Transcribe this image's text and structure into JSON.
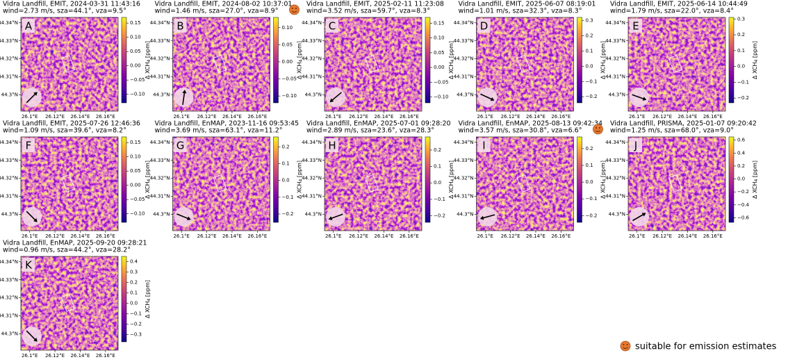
{
  "chart_data": [
    {
      "type": "heatmap",
      "title": "Vidra Landfill, EMIT, 2024-03-31 11:43:16",
      "subtitle": "wind=2.73 m/s, sza=44.1°, vza=9.5°",
      "label": "A",
      "suitable": false,
      "wind_arrow_deg": 45,
      "xlim": [
        26.093,
        26.17
      ],
      "ylim": [
        44.291,
        44.343
      ],
      "xticks": [
        {
          "value": 26.1,
          "label": "26.1°E"
        },
        {
          "value": 26.12,
          "label": "26.12°E"
        },
        {
          "value": 26.14,
          "label": "26.14°E"
        },
        {
          "value": 26.16,
          "label": "26.16°E"
        }
      ],
      "yticks": [
        {
          "value": 44.34,
          "label": "44.34°N"
        },
        {
          "value": 44.33,
          "label": "44.33°N"
        },
        {
          "value": 44.32,
          "label": "44.32°N"
        },
        {
          "value": 44.31,
          "label": "44.31°N"
        },
        {
          "value": 44.3,
          "label": "44.3°N"
        }
      ],
      "clim": [
        -0.13,
        0.17
      ],
      "cticks": [
        {
          "value": 0.15,
          "label": "0.15"
        },
        {
          "value": 0.1,
          "label": "0.10"
        },
        {
          "value": 0.05,
          "label": "0.05"
        },
        {
          "value": 0,
          "label": "0.00"
        },
        {
          "value": -0.05,
          "label": "−0.05"
        },
        {
          "value": -0.1,
          "label": "−0.10"
        }
      ],
      "clabel": [
        "Δ XCH",
        "4",
        " [ppm]"
      ]
    },
    {
      "type": "heatmap",
      "title": "Vidra Landfill, EMIT, 2024-08-02 10:37:01",
      "subtitle": "wind=1.46 m/s, sza=27.0°, vza=8.9°",
      "label": "B",
      "suitable": true,
      "wind_arrow_deg": 8,
      "xlim": [
        26.093,
        26.17
      ],
      "ylim": [
        44.291,
        44.343
      ],
      "xticks": [
        {
          "value": 26.1,
          "label": "26.1°E"
        },
        {
          "value": 26.12,
          "label": "26.12°E"
        },
        {
          "value": 26.14,
          "label": "26.14°E"
        },
        {
          "value": 26.16,
          "label": "26.16°E"
        }
      ],
      "yticks": [
        {
          "value": 44.34,
          "label": "44.34°N"
        },
        {
          "value": 44.33,
          "label": "44.33°N"
        },
        {
          "value": 44.32,
          "label": "44.32°N"
        },
        {
          "value": 44.31,
          "label": "44.31°N"
        },
        {
          "value": 44.3,
          "label": "44.3°N"
        }
      ],
      "clim": [
        -0.12,
        0.13
      ],
      "cticks": [
        {
          "value": 0.1,
          "label": "0.10"
        },
        {
          "value": 0.05,
          "label": "0.05"
        },
        {
          "value": 0,
          "label": "0.00"
        },
        {
          "value": -0.05,
          "label": "−0.05"
        },
        {
          "value": -0.1,
          "label": "−0.10"
        }
      ],
      "clabel": [
        "Δ XCH",
        "4",
        " [ppm]"
      ]
    },
    {
      "type": "heatmap",
      "title": "Vidra Landfill, EMIT, 2025-02-11 11:23:08",
      "subtitle": "wind=3.52 m/s, sza=59.7°, vza=8.3°",
      "label": "C",
      "suitable": false,
      "wind_arrow_deg": 230,
      "xlim": [
        26.093,
        26.17
      ],
      "ylim": [
        44.291,
        44.343
      ],
      "xticks": [
        {
          "value": 26.1,
          "label": "26.1°E"
        },
        {
          "value": 26.12,
          "label": "26.12°E"
        },
        {
          "value": 26.14,
          "label": "26.14°E"
        },
        {
          "value": 26.16,
          "label": "26.16°E"
        }
      ],
      "yticks": [
        {
          "value": 44.34,
          "label": "44.34°N"
        },
        {
          "value": 44.33,
          "label": "44.33°N"
        },
        {
          "value": 44.32,
          "label": "44.32°N"
        },
        {
          "value": 44.31,
          "label": "44.31°N"
        },
        {
          "value": 44.3,
          "label": "44.3°N"
        }
      ],
      "clim": [
        -0.12,
        0.17
      ],
      "cticks": [
        {
          "value": 0.15,
          "label": "0.15"
        },
        {
          "value": 0.1,
          "label": "0.10"
        },
        {
          "value": 0.05,
          "label": "0.05"
        },
        {
          "value": 0,
          "label": "0.00"
        },
        {
          "value": -0.05,
          "label": "−0.05"
        },
        {
          "value": -0.1,
          "label": "−0.10"
        }
      ],
      "clabel": [
        "Δ XCH",
        "4",
        " [ppm]"
      ]
    },
    {
      "type": "heatmap",
      "title": "Vidra Landfill, EMIT, 2025-06-07 08:19:01",
      "subtitle": "wind=1.01 m/s, sza=32.3°, vza=8.3°",
      "label": "D",
      "suitable": false,
      "wind_arrow_deg": 115,
      "xlim": [
        26.093,
        26.17
      ],
      "ylim": [
        44.291,
        44.343
      ],
      "xticks": [
        {
          "value": 26.1,
          "label": "26.1°E"
        },
        {
          "value": 26.12,
          "label": "26.12°E"
        },
        {
          "value": 26.14,
          "label": "26.14°E"
        },
        {
          "value": 26.16,
          "label": "26.16°E"
        }
      ],
      "yticks": [
        {
          "value": 44.34,
          "label": "44.34°N"
        },
        {
          "value": 44.33,
          "label": "44.33°N"
        },
        {
          "value": 44.32,
          "label": "44.32°N"
        },
        {
          "value": 44.31,
          "label": "44.31°N"
        },
        {
          "value": 44.3,
          "label": "44.3°N"
        }
      ],
      "clim": [
        -0.24,
        0.32
      ],
      "cticks": [
        {
          "value": 0.3,
          "label": "0.3"
        },
        {
          "value": 0.2,
          "label": "0.2"
        },
        {
          "value": 0.1,
          "label": "0.1"
        },
        {
          "value": 0,
          "label": "0.0"
        },
        {
          "value": -0.1,
          "label": "−0.1"
        },
        {
          "value": -0.2,
          "label": "−0.2"
        }
      ],
      "clabel": [
        "Δ XCH",
        "4",
        " [ppm]"
      ]
    },
    {
      "type": "heatmap",
      "title": "Vidra Landfill, EMIT, 2025-06-14 10:44:49",
      "subtitle": "wind=1.79 m/s, sza=22.0°, vza=8.4°",
      "label": "E",
      "suitable": false,
      "wind_arrow_deg": 110,
      "xlim": [
        26.093,
        26.17
      ],
      "ylim": [
        44.291,
        44.343
      ],
      "xticks": [
        {
          "value": 26.1,
          "label": "26.1°E"
        },
        {
          "value": 26.12,
          "label": "26.12°E"
        },
        {
          "value": 26.14,
          "label": "26.14°E"
        },
        {
          "value": 26.16,
          "label": "26.16°E"
        }
      ],
      "yticks": [
        {
          "value": 44.34,
          "label": "44.34°N"
        },
        {
          "value": 44.33,
          "label": "44.33°N"
        },
        {
          "value": 44.32,
          "label": "44.32°N"
        },
        {
          "value": 44.31,
          "label": "44.31°N"
        },
        {
          "value": 44.3,
          "label": "44.3°N"
        }
      ],
      "clim": [
        -0.23,
        0.31
      ],
      "cticks": [
        {
          "value": 0.3,
          "label": "0.3"
        },
        {
          "value": 0.2,
          "label": "0.2"
        },
        {
          "value": 0.1,
          "label": "0.1"
        },
        {
          "value": 0,
          "label": "0.0"
        },
        {
          "value": -0.1,
          "label": "−0.1"
        },
        {
          "value": -0.2,
          "label": "−0.2"
        }
      ],
      "clabel": [
        "Δ XCH",
        "4",
        " [ppm]"
      ]
    },
    {
      "type": "heatmap",
      "title": "Vidra Landfill, EMIT, 2025-07-26 12:46:36",
      "subtitle": "wind=1.09 m/s, sza=39.6°, vza=8.2°",
      "label": "F",
      "suitable": false,
      "wind_arrow_deg": 135,
      "xlim": [
        26.093,
        26.17
      ],
      "ylim": [
        44.291,
        44.343
      ],
      "xticks": [
        {
          "value": 26.1,
          "label": "26.1°E"
        },
        {
          "value": 26.12,
          "label": "26.12°E"
        },
        {
          "value": 26.14,
          "label": "26.14°E"
        },
        {
          "value": 26.16,
          "label": "26.16°E"
        }
      ],
      "yticks": [
        {
          "value": 44.34,
          "label": "44.34°N"
        },
        {
          "value": 44.33,
          "label": "44.33°N"
        },
        {
          "value": 44.32,
          "label": "44.32°N"
        },
        {
          "value": 44.31,
          "label": "44.31°N"
        },
        {
          "value": 44.3,
          "label": "44.3°N"
        }
      ],
      "clim": [
        -0.13,
        0.17
      ],
      "cticks": [
        {
          "value": 0.15,
          "label": "0.15"
        },
        {
          "value": 0.1,
          "label": "0.10"
        },
        {
          "value": 0.05,
          "label": "0.05"
        },
        {
          "value": 0,
          "label": "0.00"
        },
        {
          "value": -0.05,
          "label": "−0.05"
        },
        {
          "value": -0.1,
          "label": "−0.10"
        }
      ],
      "clabel": [
        "Δ XCH",
        "4",
        " [ppm]"
      ]
    },
    {
      "type": "heatmap",
      "title": "Vidra Landfill, EnMAP, 2023-11-16 09:53:45",
      "subtitle": "wind=3.69 m/s, sza=63.1°, vza=11.2°",
      "label": "G",
      "suitable": false,
      "wind_arrow_deg": 112,
      "xlim": [
        26.093,
        26.17
      ],
      "ylim": [
        44.291,
        44.343
      ],
      "xticks": [
        {
          "value": 26.1,
          "label": "26.1°E"
        },
        {
          "value": 26.12,
          "label": "26.12°E"
        },
        {
          "value": 26.14,
          "label": "26.14°E"
        },
        {
          "value": 26.16,
          "label": "26.16°E"
        }
      ],
      "yticks": [
        {
          "value": 44.34,
          "label": "44.34°N"
        },
        {
          "value": 44.33,
          "label": "44.33°N"
        },
        {
          "value": 44.32,
          "label": "44.32°N"
        },
        {
          "value": 44.31,
          "label": "44.31°N"
        },
        {
          "value": 44.3,
          "label": "44.3°N"
        }
      ],
      "clim": [
        -0.25,
        0.26
      ],
      "cticks": [
        {
          "value": 0.2,
          "label": "0.2"
        },
        {
          "value": 0.1,
          "label": "0.1"
        },
        {
          "value": 0,
          "label": "0.0"
        },
        {
          "value": -0.1,
          "label": "−0.1"
        },
        {
          "value": -0.2,
          "label": "−0.2"
        }
      ],
      "clabel": [
        "Δ XCH",
        "4",
        " [ppm]"
      ]
    },
    {
      "type": "heatmap",
      "title": "Vidra Landfill, EnMAP, 2025-07-01 09:28:20",
      "subtitle": "wind=2.89 m/s, sza=23.6°, vza=28.3°",
      "label": "H",
      "suitable": false,
      "wind_arrow_deg": 250,
      "xlim": [
        26.093,
        26.17
      ],
      "ylim": [
        44.291,
        44.343
      ],
      "xticks": [
        {
          "value": 26.1,
          "label": "26.1°E"
        },
        {
          "value": 26.12,
          "label": "26.12°E"
        },
        {
          "value": 26.14,
          "label": "26.14°E"
        },
        {
          "value": 26.16,
          "label": "26.16°E"
        }
      ],
      "yticks": [
        {
          "value": 44.34,
          "label": "44.34°N"
        },
        {
          "value": 44.33,
          "label": "44.33°N"
        },
        {
          "value": 44.32,
          "label": "44.32°N"
        },
        {
          "value": 44.31,
          "label": "44.31°N"
        },
        {
          "value": 44.3,
          "label": "44.3°N"
        }
      ],
      "clim": [
        -0.24,
        0.28
      ],
      "cticks": [
        {
          "value": 0.2,
          "label": "0.2"
        },
        {
          "value": 0.1,
          "label": "0.1"
        },
        {
          "value": 0,
          "label": "0.0"
        },
        {
          "value": -0.1,
          "label": "−0.1"
        },
        {
          "value": -0.2,
          "label": "−0.2"
        }
      ],
      "clabel": [
        "Δ XCH",
        "4",
        " [ppm]"
      ]
    },
    {
      "type": "heatmap",
      "title": "Vidra Landfill, EnMAP, 2025-08-13 09:42:34",
      "subtitle": "wind=3.57 m/s, sza=30.8°, vza=6.6°",
      "label": "I",
      "suitable": true,
      "wind_arrow_deg": 255,
      "xlim": [
        26.093,
        26.17
      ],
      "ylim": [
        44.291,
        44.343
      ],
      "xticks": [
        {
          "value": 26.1,
          "label": "26.1°E"
        },
        {
          "value": 26.12,
          "label": "26.12°E"
        },
        {
          "value": 26.14,
          "label": "26.14°E"
        },
        {
          "value": 26.16,
          "label": "26.16°E"
        }
      ],
      "yticks": [
        {
          "value": 44.34,
          "label": "44.34°N"
        },
        {
          "value": 44.33,
          "label": "44.33°N"
        },
        {
          "value": 44.32,
          "label": "44.32°N"
        },
        {
          "value": 44.31,
          "label": "44.31°N"
        },
        {
          "value": 44.3,
          "label": "44.3°N"
        }
      ],
      "clim": [
        -0.24,
        0.27
      ],
      "cticks": [
        {
          "value": 0.2,
          "label": "0.2"
        },
        {
          "value": 0.1,
          "label": "0.1"
        },
        {
          "value": 0,
          "label": "0.0"
        },
        {
          "value": -0.1,
          "label": "−0.1"
        },
        {
          "value": -0.2,
          "label": "−0.2"
        }
      ],
      "clabel": [
        "Δ XCH",
        "4",
        " [ppm]"
      ]
    },
    {
      "type": "heatmap",
      "title": "Vidra Landfill, PRISMA, 2025-01-07 09:20:42",
      "subtitle": "wind=1.25 m/s, sza=68.0°, vza=9.0°",
      "label": "J",
      "suitable": false,
      "wind_arrow_deg": 60,
      "xlim": [
        26.093,
        26.17
      ],
      "ylim": [
        44.291,
        44.343
      ],
      "xticks": [
        {
          "value": 26.1,
          "label": "26.1°E"
        },
        {
          "value": 26.12,
          "label": "26.12°E"
        },
        {
          "value": 26.14,
          "label": "26.14°E"
        },
        {
          "value": 26.16,
          "label": "26.16°E"
        }
      ],
      "yticks": [
        {
          "value": 44.34,
          "label": "44.34°N"
        },
        {
          "value": 44.33,
          "label": "44.33°N"
        },
        {
          "value": 44.32,
          "label": "44.32°N"
        },
        {
          "value": 44.31,
          "label": "44.31°N"
        },
        {
          "value": 44.3,
          "label": "44.3°N"
        }
      ],
      "clim": [
        -0.67,
        0.65
      ],
      "cticks": [
        {
          "value": 0.6,
          "label": "0.6"
        },
        {
          "value": 0.4,
          "label": "0.4"
        },
        {
          "value": 0.2,
          "label": "0.2"
        },
        {
          "value": 0,
          "label": "0.0"
        },
        {
          "value": -0.2,
          "label": "−0.2"
        },
        {
          "value": -0.4,
          "label": "−0.4"
        },
        {
          "value": -0.6,
          "label": "−0.6"
        }
      ],
      "clabel": [
        "Δ XCH",
        "4",
        " [ppm]"
      ]
    },
    {
      "type": "heatmap",
      "title": "Vidra Landfill, EnMAP, 2025-09-20 09:28:21",
      "subtitle": "wind=0.96 m/s, sza=44.2°, vza=28.2°",
      "label": "K",
      "suitable": false,
      "wind_arrow_deg": 135,
      "xlim": [
        26.093,
        26.17
      ],
      "ylim": [
        44.291,
        44.343
      ],
      "xticks": [
        {
          "value": 26.1,
          "label": "26.1°E"
        },
        {
          "value": 26.12,
          "label": "26.12°E"
        },
        {
          "value": 26.14,
          "label": "26.14°E"
        },
        {
          "value": 26.16,
          "label": "26.16°E"
        }
      ],
      "yticks": [
        {
          "value": 44.34,
          "label": "44.34°N"
        },
        {
          "value": 44.33,
          "label": "44.33°N"
        },
        {
          "value": 44.32,
          "label": "44.32°N"
        },
        {
          "value": 44.31,
          "label": "44.31°N"
        },
        {
          "value": 44.3,
          "label": "44.3°N"
        }
      ],
      "clim": [
        -0.37,
        0.45
      ],
      "cticks": [
        {
          "value": 0.4,
          "label": "0.4"
        },
        {
          "value": 0.3,
          "label": "0.3"
        },
        {
          "value": 0.2,
          "label": "0.2"
        },
        {
          "value": 0.1,
          "label": "0.1"
        },
        {
          "value": 0,
          "label": "0.0"
        },
        {
          "value": -0.1,
          "label": "−0.1"
        },
        {
          "value": -0.2,
          "label": "−0.2"
        },
        {
          "value": -0.3,
          "label": "−0.3"
        }
      ],
      "clabel": [
        "Δ XCH",
        "4",
        " [ppm]"
      ]
    }
  ],
  "legend": "suitable for emission estimates"
}
